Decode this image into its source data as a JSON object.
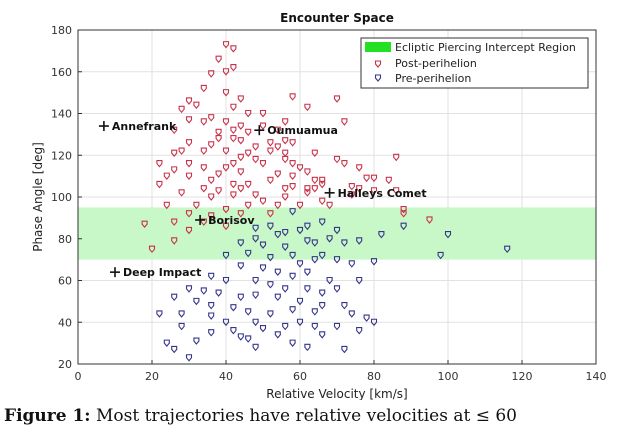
{
  "caption": {
    "figure_label": "Figure 1:",
    "text": "Most trajectories have relative velocities at ≤ 60"
  },
  "chart_data": {
    "type": "scatter",
    "title": "Encounter Space",
    "xlabel": "Relative Velocity [km/s]",
    "ylabel": "Phase Angle [deg]",
    "xlim": [
      0,
      140
    ],
    "ylim": [
      20,
      180
    ],
    "xticks": [
      0,
      20,
      40,
      60,
      80,
      100,
      120,
      140
    ],
    "yticks": [
      20,
      40,
      60,
      80,
      100,
      120,
      140,
      160,
      180
    ],
    "grid": true,
    "legend_position": "top-right",
    "region": {
      "name": "Ecliptic Piercing Intercept Region",
      "y_range": [
        70,
        95
      ],
      "color": "#c8f7c8",
      "legend_color": "#22e022"
    },
    "series": [
      {
        "name": "Post-perihelion",
        "color": "#c8324a",
        "points": [
          [
            40,
            173
          ],
          [
            42,
            171
          ],
          [
            38,
            166
          ],
          [
            40,
            160
          ],
          [
            42,
            162
          ],
          [
            36,
            159
          ],
          [
            34,
            152
          ],
          [
            40,
            150
          ],
          [
            44,
            147
          ],
          [
            58,
            148
          ],
          [
            70,
            147
          ],
          [
            30,
            146
          ],
          [
            32,
            144
          ],
          [
            62,
            143
          ],
          [
            42,
            143
          ],
          [
            28,
            142
          ],
          [
            46,
            140
          ],
          [
            50,
            140
          ],
          [
            36,
            138
          ],
          [
            30,
            137
          ],
          [
            34,
            136
          ],
          [
            40,
            136
          ],
          [
            56,
            136
          ],
          [
            72,
            136
          ],
          [
            44,
            134
          ],
          [
            50,
            134
          ],
          [
            26,
            132
          ],
          [
            38,
            131
          ],
          [
            42,
            132
          ],
          [
            46,
            131
          ],
          [
            54,
            132
          ],
          [
            38,
            128
          ],
          [
            42,
            128
          ],
          [
            44,
            127
          ],
          [
            52,
            126
          ],
          [
            56,
            127
          ],
          [
            30,
            126
          ],
          [
            36,
            125
          ],
          [
            48,
            124
          ],
          [
            54,
            124
          ],
          [
            58,
            126
          ],
          [
            26,
            121
          ],
          [
            28,
            122
          ],
          [
            34,
            122
          ],
          [
            40,
            122
          ],
          [
            52,
            122
          ],
          [
            56,
            121
          ],
          [
            64,
            121
          ],
          [
            46,
            121
          ],
          [
            44,
            119
          ],
          [
            48,
            118
          ],
          [
            56,
            118
          ],
          [
            22,
            116
          ],
          [
            30,
            116
          ],
          [
            40,
            114
          ],
          [
            42,
            116
          ],
          [
            50,
            116
          ],
          [
            58,
            116
          ],
          [
            60,
            114
          ],
          [
            70,
            118
          ],
          [
            72,
            116
          ],
          [
            34,
            114
          ],
          [
            38,
            111
          ],
          [
            24,
            110
          ],
          [
            26,
            113
          ],
          [
            44,
            112
          ],
          [
            54,
            111
          ],
          [
            62,
            112
          ],
          [
            76,
            114
          ],
          [
            86,
            119
          ],
          [
            30,
            110
          ],
          [
            36,
            108
          ],
          [
            42,
            106
          ],
          [
            46,
            106
          ],
          [
            52,
            108
          ],
          [
            58,
            110
          ],
          [
            64,
            108
          ],
          [
            66,
            106
          ],
          [
            58,
            105
          ],
          [
            78,
            109
          ],
          [
            80,
            109
          ],
          [
            22,
            106
          ],
          [
            34,
            104
          ],
          [
            38,
            103
          ],
          [
            44,
            104
          ],
          [
            56,
            104
          ],
          [
            62,
            104
          ],
          [
            66,
            108
          ],
          [
            84,
            108
          ],
          [
            74,
            105
          ],
          [
            76,
            104
          ],
          [
            28,
            102
          ],
          [
            36,
            100
          ],
          [
            42,
            101
          ],
          [
            48,
            101
          ],
          [
            56,
            100
          ],
          [
            64,
            104
          ],
          [
            62,
            102
          ],
          [
            50,
            98
          ],
          [
            60,
            96
          ],
          [
            66,
            98
          ],
          [
            68,
            96
          ],
          [
            74,
            101
          ],
          [
            80,
            103
          ],
          [
            86,
            103
          ],
          [
            24,
            96
          ],
          [
            32,
            96
          ],
          [
            46,
            96
          ],
          [
            54,
            96
          ],
          [
            40,
            94
          ],
          [
            30,
            92
          ],
          [
            36,
            91
          ],
          [
            44,
            92
          ],
          [
            52,
            92
          ],
          [
            88,
            92
          ],
          [
            88,
            94
          ],
          [
            26,
            88
          ],
          [
            34,
            88
          ],
          [
            18,
            87
          ],
          [
            30,
            84
          ],
          [
            40,
            86
          ],
          [
            20,
            75
          ],
          [
            26,
            79
          ],
          [
            95,
            89
          ]
        ]
      },
      {
        "name": "Pre-perihelion",
        "color": "#35358a",
        "points": [
          [
            58,
            93
          ],
          [
            62,
            86
          ],
          [
            66,
            88
          ],
          [
            70,
            84
          ],
          [
            56,
            83
          ],
          [
            60,
            84
          ],
          [
            48,
            85
          ],
          [
            52,
            86
          ],
          [
            54,
            82
          ],
          [
            44,
            78
          ],
          [
            48,
            80
          ],
          [
            50,
            77
          ],
          [
            56,
            76
          ],
          [
            62,
            79
          ],
          [
            64,
            78
          ],
          [
            68,
            80
          ],
          [
            72,
            78
          ],
          [
            76,
            79
          ],
          [
            82,
            82
          ],
          [
            88,
            86
          ],
          [
            100,
            82
          ],
          [
            116,
            75
          ],
          [
            40,
            72
          ],
          [
            46,
            73
          ],
          [
            52,
            71
          ],
          [
            58,
            72
          ],
          [
            60,
            68
          ],
          [
            64,
            70
          ],
          [
            66,
            72
          ],
          [
            70,
            70
          ],
          [
            74,
            68
          ],
          [
            80,
            69
          ],
          [
            98,
            72
          ],
          [
            44,
            67
          ],
          [
            50,
            66
          ],
          [
            54,
            64
          ],
          [
            58,
            62
          ],
          [
            62,
            64
          ],
          [
            68,
            60
          ],
          [
            76,
            60
          ],
          [
            36,
            62
          ],
          [
            40,
            60
          ],
          [
            48,
            60
          ],
          [
            52,
            58
          ],
          [
            56,
            56
          ],
          [
            62,
            56
          ],
          [
            66,
            54
          ],
          [
            70,
            56
          ],
          [
            30,
            56
          ],
          [
            34,
            55
          ],
          [
            38,
            54
          ],
          [
            44,
            52
          ],
          [
            48,
            53
          ],
          [
            54,
            52
          ],
          [
            60,
            50
          ],
          [
            66,
            48
          ],
          [
            72,
            48
          ],
          [
            26,
            52
          ],
          [
            32,
            50
          ],
          [
            36,
            48
          ],
          [
            42,
            47
          ],
          [
            46,
            45
          ],
          [
            52,
            44
          ],
          [
            58,
            46
          ],
          [
            64,
            45
          ],
          [
            74,
            44
          ],
          [
            78,
            42
          ],
          [
            80,
            40
          ],
          [
            28,
            44
          ],
          [
            22,
            44
          ],
          [
            36,
            43
          ],
          [
            40,
            40
          ],
          [
            48,
            40
          ],
          [
            56,
            38
          ],
          [
            60,
            40
          ],
          [
            64,
            38
          ],
          [
            42,
            36
          ],
          [
            50,
            37
          ],
          [
            54,
            34
          ],
          [
            70,
            38
          ],
          [
            76,
            36
          ],
          [
            36,
            35
          ],
          [
            44,
            33
          ],
          [
            28,
            38
          ],
          [
            32,
            31
          ],
          [
            24,
            30
          ],
          [
            26,
            27
          ],
          [
            30,
            23
          ],
          [
            46,
            32
          ],
          [
            58,
            30
          ],
          [
            66,
            34
          ],
          [
            48,
            28
          ],
          [
            62,
            28
          ],
          [
            72,
            27
          ]
        ]
      }
    ],
    "annotations": [
      {
        "label": "Annefrank",
        "x": 7,
        "y": 134
      },
      {
        "label": "Oumuamua",
        "x": 49,
        "y": 132
      },
      {
        "label": "Halleys Comet",
        "x": 68,
        "y": 102
      },
      {
        "label": "Borisov",
        "x": 33,
        "y": 89
      },
      {
        "label": "Deep Impact",
        "x": 10,
        "y": 64
      }
    ]
  }
}
